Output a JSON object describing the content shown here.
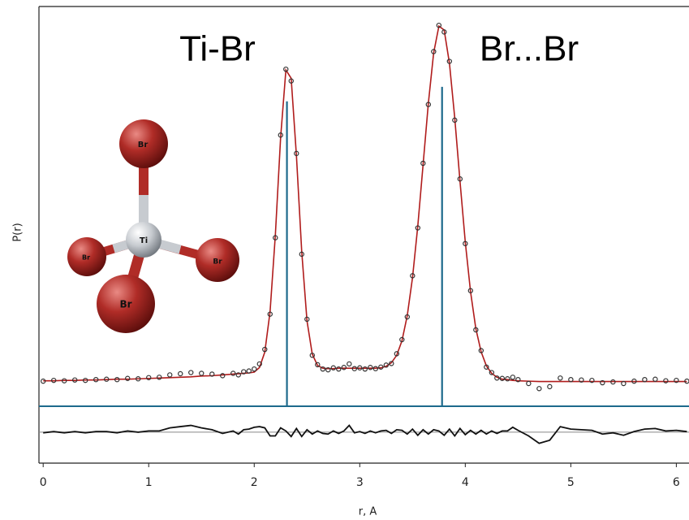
{
  "chart_data": {
    "type": "line",
    "ylabel": "P(r)",
    "xlabel": "r, A",
    "annotations": [
      "Ti-Br",
      "Br...Br"
    ],
    "molecule_labels": [
      "Br",
      "Ti",
      "Br",
      "Br",
      "Br"
    ],
    "xlim": [
      -0.04,
      6.12
    ],
    "xticks": [
      0,
      1,
      2,
      3,
      4,
      5,
      6
    ],
    "ylim": [
      0,
      10.2
    ],
    "y2lim": [
      -0.5,
      0.38
    ],
    "x": [
      0,
      0.1,
      0.2,
      0.3,
      0.4,
      0.5,
      0.6,
      0.7,
      0.8,
      0.9,
      1.0,
      1.1,
      1.2,
      1.3,
      1.4,
      1.5,
      1.6,
      1.7,
      1.8,
      1.85,
      1.9,
      1.95,
      2.0,
      2.05,
      2.1,
      2.15,
      2.2,
      2.25,
      2.3,
      2.35,
      2.4,
      2.45,
      2.5,
      2.55,
      2.6,
      2.65,
      2.7,
      2.75,
      2.8,
      2.85,
      2.9,
      2.95,
      3.0,
      3.05,
      3.1,
      3.15,
      3.2,
      3.25,
      3.3,
      3.35,
      3.4,
      3.45,
      3.5,
      3.55,
      3.6,
      3.65,
      3.7,
      3.75,
      3.8,
      3.85,
      3.9,
      3.95,
      4.0,
      4.05,
      4.1,
      4.15,
      4.2,
      4.25,
      4.3,
      4.35,
      4.4,
      4.45,
      4.5,
      4.6,
      4.7,
      4.8,
      4.9,
      5.0,
      5.1,
      5.2,
      5.3,
      5.4,
      5.5,
      5.6,
      5.7,
      5.8,
      5.9,
      6.0,
      6.1
    ],
    "series": [
      {
        "style": "markers",
        "color": "#333333",
        "values": [
          0.64,
          0.66,
          0.65,
          0.67,
          0.66,
          0.68,
          0.69,
          0.68,
          0.71,
          0.7,
          0.73,
          0.74,
          0.8,
          0.83,
          0.86,
          0.84,
          0.82,
          0.78,
          0.84,
          0.8,
          0.88,
          0.9,
          0.95,
          1.08,
          1.45,
          2.35,
          4.3,
          6.92,
          8.6,
          8.3,
          6.45,
          3.88,
          2.22,
          1.3,
          1.06,
          0.95,
          0.93,
          0.98,
          0.95,
          0.99,
          1.08,
          0.96,
          0.98,
          0.95,
          0.99,
          0.96,
          1.0,
          1.05,
          1.09,
          1.34,
          1.7,
          2.28,
          3.33,
          4.55,
          6.2,
          7.7,
          9.05,
          9.72,
          9.55,
          8.8,
          7.3,
          5.8,
          4.15,
          2.95,
          1.95,
          1.42,
          1.0,
          0.86,
          0.72,
          0.71,
          0.7,
          0.74,
          0.68,
          0.58,
          0.45,
          0.5,
          0.72,
          0.68,
          0.67,
          0.66,
          0.6,
          0.62,
          0.58,
          0.64,
          0.68,
          0.69,
          0.65,
          0.66,
          0.64
        ]
      },
      {
        "style": "line",
        "color": "#b01c1c",
        "values": [
          0.65,
          0.65,
          0.66,
          0.66,
          0.67,
          0.67,
          0.68,
          0.69,
          0.69,
          0.7,
          0.71,
          0.72,
          0.73,
          0.74,
          0.75,
          0.77,
          0.78,
          0.8,
          0.82,
          0.83,
          0.84,
          0.85,
          0.87,
          0.99,
          1.38,
          2.41,
          4.36,
          6.85,
          8.58,
          8.37,
          6.39,
          3.95,
          2.18,
          1.33,
          1.04,
          0.97,
          0.96,
          0.96,
          0.97,
          0.97,
          0.97,
          0.97,
          0.97,
          0.97,
          0.97,
          0.97,
          0.98,
          1.02,
          1.11,
          1.3,
          1.67,
          2.31,
          3.28,
          4.6,
          6.16,
          7.73,
          9.01,
          9.7,
          9.6,
          8.75,
          7.36,
          5.74,
          4.19,
          2.92,
          1.98,
          1.39,
          1.03,
          0.84,
          0.74,
          0.69,
          0.68,
          0.66,
          0.65,
          0.64,
          0.63,
          0.63,
          0.63,
          0.63,
          0.63,
          0.63,
          0.63,
          0.63,
          0.63,
          0.63,
          0.63,
          0.63,
          0.63,
          0.63,
          0.63
        ]
      },
      {
        "style": "sticks",
        "color": "#1d6a8c",
        "x": [
          2.31,
          3.78
        ],
        "values": [
          7.78,
          8.15
        ]
      },
      {
        "style": "line",
        "axis": "y2",
        "color": "#111111",
        "values": [
          -0.01,
          0.01,
          -0.01,
          0.01,
          -0.01,
          0.01,
          0.01,
          -0.01,
          0.02,
          0,
          0.02,
          0.02,
          0.07,
          0.09,
          0.11,
          0.07,
          0.04,
          -0.02,
          0.02,
          -0.03,
          0.04,
          0.05,
          0.08,
          0.09,
          0.07,
          -0.06,
          -0.06,
          0.07,
          0.02,
          -0.07,
          0.06,
          -0.07,
          0.04,
          -0.03,
          0.02,
          -0.02,
          -0.03,
          0.02,
          -0.02,
          0.02,
          0.11,
          -0.01,
          0.01,
          -0.02,
          0.02,
          -0.01,
          0.02,
          0.03,
          -0.02,
          0.04,
          0.03,
          -0.03,
          0.05,
          -0.05,
          0.04,
          -0.03,
          0.04,
          0.02,
          -0.05,
          0.05,
          -0.06,
          0.06,
          -0.04,
          0.03,
          -0.03,
          0.03,
          -0.03,
          0.02,
          -0.02,
          0.02,
          0.02,
          0.08,
          0.03,
          -0.06,
          -0.18,
          -0.13,
          0.09,
          0.05,
          0.04,
          0.03,
          -0.03,
          -0.01,
          -0.05,
          0.01,
          0.05,
          0.06,
          0.02,
          0.03,
          0.01
        ]
      }
    ]
  }
}
